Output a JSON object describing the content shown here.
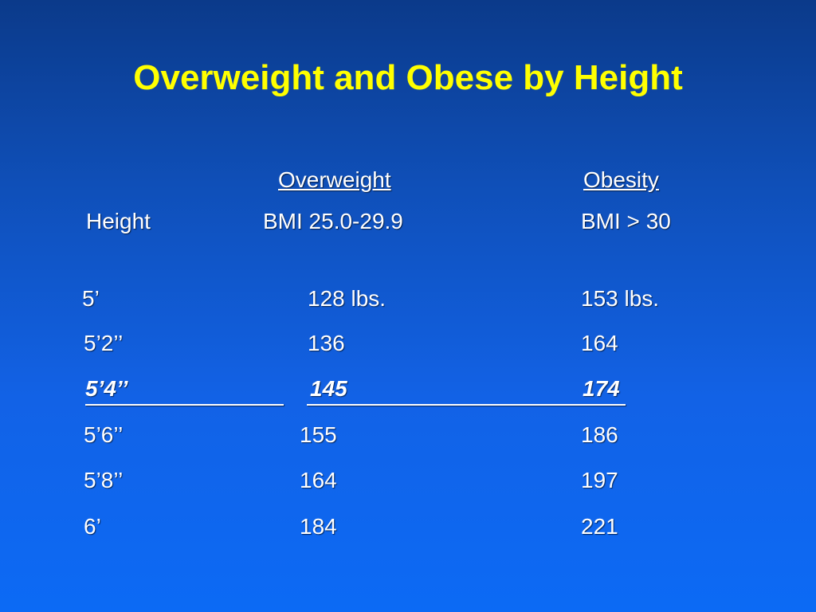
{
  "slide": {
    "title": "Overweight and Obese by Height"
  },
  "table": {
    "headers": {
      "group_overweight": "Overweight",
      "group_obesity": "Obesity",
      "height": "Height",
      "bmi_overweight": "BMI 25.0-29.9",
      "bmi_obesity": "BMI > 30"
    },
    "rows": [
      {
        "height": "5’",
        "overweight": "128 lbs.",
        "obesity": "153 lbs."
      },
      {
        "height": "5’2’’",
        "overweight": "136",
        "obesity": "164"
      },
      {
        "height": "5’4’’",
        "overweight": "145",
        "obesity": "174",
        "highlighted": true
      },
      {
        "height": "5’6’’",
        "overweight": "155",
        "obesity": "186"
      },
      {
        "height": "5’8’’",
        "overweight": "164",
        "obesity": "197"
      },
      {
        "height": "6’",
        "overweight": "184",
        "obesity": "221"
      }
    ]
  },
  "colors": {
    "title": "#ffff00",
    "text": "#ffffff",
    "background_top": "#0b3a8a",
    "background_bottom": "#0c6af5"
  }
}
